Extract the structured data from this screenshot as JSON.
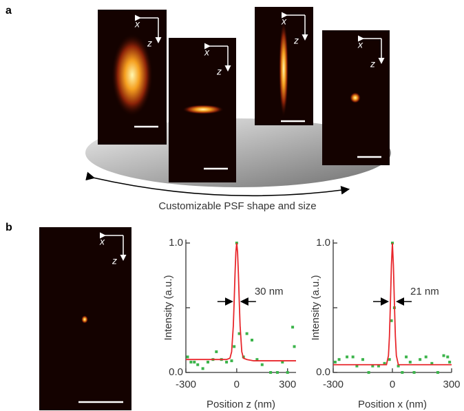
{
  "panel_a": {
    "label": "a",
    "caption": "Customizable PSF shape and size",
    "images": [
      {
        "axis_labels": [
          "x",
          "z"
        ]
      },
      {
        "axis_labels": [
          "x",
          "z"
        ]
      },
      {
        "axis_labels": [
          "x",
          "z"
        ]
      },
      {
        "axis_labels": [
          "x",
          "z"
        ]
      }
    ]
  },
  "panel_b": {
    "label": "b",
    "image": {
      "axis_labels": [
        "x",
        "z"
      ]
    }
  },
  "chart_data": [
    {
      "type": "line",
      "xlabel": "Position z (nm)",
      "ylabel": "Intensity (a.u.)",
      "annotation": "30 nm",
      "xlim": [
        -300,
        350
      ],
      "xticks": [
        -300,
        0,
        300
      ],
      "ylim": [
        0,
        1
      ],
      "yticks": [
        {
          "value": 0,
          "label": "0.0"
        },
        {
          "value": 0.5,
          "label": null
        },
        {
          "value": 1,
          "label": "1.0"
        }
      ],
      "series": [
        {
          "style": "markers",
          "color": "#3cb44b",
          "x": [
            -290,
            -270,
            -250,
            -230,
            -200,
            -170,
            -140,
            -120,
            -90,
            -60,
            -30,
            -15,
            0,
            15,
            40,
            60,
            90,
            120,
            150,
            200,
            240,
            270,
            300,
            330,
            340
          ],
          "values": [
            0.12,
            0.08,
            0.08,
            0.06,
            0.03,
            0.08,
            0.1,
            0.16,
            0.1,
            0.08,
            0.09,
            0.2,
            1.0,
            0.3,
            0.12,
            0.3,
            0.25,
            0.1,
            0.06,
            0.0,
            0.0,
            0.08,
            0.0,
            0.35,
            0.2
          ]
        },
        {
          "style": "line",
          "color": "#e8262b",
          "x": [
            -300,
            -100,
            -60,
            -40,
            -30,
            -20,
            -15,
            -10,
            -5,
            0,
            5,
            10,
            15,
            20,
            30,
            40,
            60,
            100,
            350
          ],
          "values": [
            0.1,
            0.1,
            0.1,
            0.11,
            0.16,
            0.36,
            0.55,
            0.76,
            0.93,
            1.0,
            0.93,
            0.76,
            0.55,
            0.36,
            0.16,
            0.11,
            0.1,
            0.09,
            0.09
          ]
        }
      ]
    },
    {
      "type": "line",
      "xlabel": "Position x (nm)",
      "ylabel": "Intensity (a.u.)",
      "annotation": "21 nm",
      "xlim": [
        -300,
        300
      ],
      "xticks": [
        -300,
        0,
        300
      ],
      "ylim": [
        0,
        1
      ],
      "yticks": [
        {
          "value": 0,
          "label": "0.0"
        },
        {
          "value": 0.5,
          "label": null
        },
        {
          "value": 1,
          "label": "1.0"
        }
      ],
      "series": [
        {
          "style": "markers",
          "color": "#3cb44b",
          "x": [
            -290,
            -270,
            -230,
            -200,
            -180,
            -150,
            -120,
            -100,
            -70,
            -40,
            -15,
            -5,
            0,
            10,
            30,
            50,
            70,
            90,
            110,
            140,
            170,
            200,
            230,
            260,
            280,
            290
          ],
          "values": [
            0.08,
            0.1,
            0.12,
            0.12,
            0.05,
            0.1,
            0.0,
            0.05,
            0.05,
            0.07,
            0.1,
            0.4,
            1.0,
            0.5,
            0.05,
            0.0,
            0.12,
            0.08,
            0.0,
            0.1,
            0.12,
            0.07,
            0.0,
            0.13,
            0.12,
            0.08
          ]
        },
        {
          "style": "line",
          "color": "#e8262b",
          "x": [
            -300,
            -60,
            -30,
            -20,
            -15,
            -10,
            -5,
            0,
            5,
            10,
            15,
            20,
            30,
            60,
            300
          ],
          "values": [
            0.06,
            0.06,
            0.06,
            0.13,
            0.28,
            0.54,
            0.83,
            1.0,
            0.83,
            0.54,
            0.28,
            0.13,
            0.06,
            0.06,
            0.06
          ]
        }
      ]
    }
  ]
}
